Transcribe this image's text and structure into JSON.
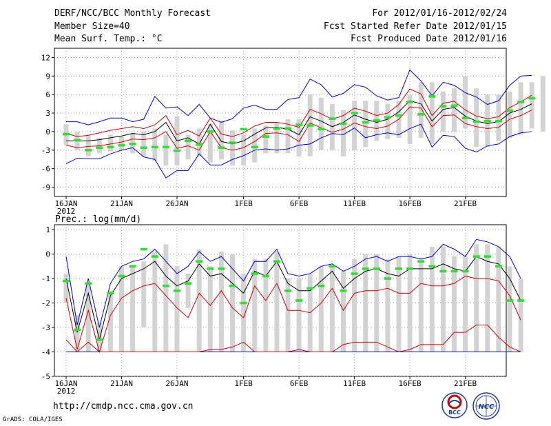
{
  "header": {
    "title": "DERF/NCC/BCC Monthly Forecast",
    "member_size": "Member Size=40",
    "variable": "Mean Surf. Temp.: °C",
    "period": "For 2012/01/16-2012/02/24",
    "start_date": "Fcst Started Refer Date 2012/01/15",
    "produced_date": "Fcst Produced Date 2012/01/16"
  },
  "footer": {
    "url": "http://cmdp.ncc.cma.gov.cn",
    "credit": "GrADS: COLA/IGES",
    "logo_bcc": "BCC",
    "logo_ncc": "NCC"
  },
  "colors": {
    "median": "#000000",
    "inner_band": "#d00000",
    "outer_band": "#0000d0",
    "box": "#d3d3d3",
    "marker": "#33dd33"
  },
  "chart_data": [
    {
      "type": "box-line",
      "name": "temperature",
      "ylabel": "Mean Surf. Temp.: °C",
      "ylim": [
        -10.5,
        13.5
      ],
      "yticks": [
        12,
        9,
        6,
        3,
        0,
        -3,
        -6,
        -9
      ],
      "x_tick_days": [
        0,
        5,
        10,
        16,
        21,
        26,
        31,
        36
      ],
      "x_tick_labels": [
        "16JAN",
        "21JAN",
        "26JAN",
        "1FEB",
        "6FEB",
        "11FEB",
        "16FEB",
        "21FEB"
      ],
      "x_year_label": "2012",
      "days": 40,
      "series": {
        "median": [
          -1.5,
          -1.5,
          -1.5,
          -1.3,
          -1,
          -0.7,
          -0.3,
          -0.5,
          0,
          1.5,
          -1.5,
          -1,
          -2,
          1.2,
          -1.6,
          -2,
          -1.5,
          -0.4,
          0.6,
          0.7,
          0.4,
          -0.5,
          2.4,
          1.7,
          0.8,
          1.5,
          2.7,
          2,
          1.5,
          2,
          3.2,
          5,
          4.5,
          1.7,
          3.6,
          3.9,
          2.5,
          1.7,
          1.3,
          1.6,
          3.0,
          3.6,
          4.5
        ],
        "p_upper": [
          -0.3,
          -0.8,
          -0.6,
          -0.2,
          0.2,
          0.5,
          0.8,
          0.5,
          1.1,
          2.6,
          -0.5,
          0.2,
          -0.7,
          2.2,
          -0.4,
          -0.8,
          -0.2,
          0.9,
          1.5,
          1.5,
          1.2,
          0.7,
          3.6,
          2.9,
          2.0,
          2.6,
          3.8,
          3.3,
          2.6,
          3.0,
          4.4,
          6.9,
          6.1,
          2.6,
          4.6,
          4.9,
          3.5,
          2.5,
          2.1,
          2.4,
          3.9,
          4.8,
          5.9
        ],
        "p_lower": [
          -2.2,
          -2.6,
          -2.4,
          -2.3,
          -2,
          -1.7,
          -1.2,
          -1.3,
          -1,
          0,
          -2.7,
          -2.3,
          -3,
          0,
          -2.6,
          -3,
          -2.6,
          -1.6,
          -0.3,
          -0.2,
          -0.5,
          -1.6,
          1.4,
          0.6,
          -0.1,
          0.4,
          1.4,
          0.8,
          0.5,
          0.9,
          2.0,
          4.0,
          3.8,
          0.8,
          2.6,
          2.7,
          1.3,
          0.8,
          0.5,
          0.7,
          2.0,
          2.6,
          3.5
        ],
        "max": [
          1.6,
          1.6,
          1.1,
          1.6,
          2.2,
          2.2,
          1.6,
          2.0,
          5.7,
          3.8,
          4.0,
          2.6,
          4.4,
          2.2,
          1.5,
          2.1,
          3.8,
          4.3,
          3.6,
          3.6,
          5.2,
          5.5,
          8.5,
          7.6,
          5.6,
          6.2,
          7.6,
          7.2,
          5.8,
          5.1,
          5.5,
          10,
          8.2,
          5.8,
          8.0,
          7.5,
          6.3,
          5.6,
          4.4,
          5.0,
          7.5,
          9.0,
          9.1
        ],
        "min": [
          -5.2,
          -4.3,
          -4.4,
          -4.4,
          -3.6,
          -3.0,
          -2.6,
          -4.1,
          -4.5,
          -7.5,
          -6.3,
          -6.3,
          -3.6,
          -5.4,
          -5.4,
          -4.5,
          -3.9,
          -3.0,
          -2.8,
          -3.0,
          -2.8,
          -2.2,
          -2.0,
          -1.0,
          -0.3,
          -0.5,
          0.6,
          -1.0,
          -0.5,
          -0.2,
          -0.5,
          0.5,
          1.2,
          -2.5,
          -0.6,
          -0.8,
          -2.7,
          -3.3,
          -2.3,
          -2.0,
          -0.8,
          -0.2,
          0.0
        ]
      },
      "boxes": [
        [
          -2.2,
          1.2
        ],
        [
          -3,
          0
        ],
        [
          -4,
          -0.5
        ],
        [
          -3.5,
          -1
        ],
        [
          -3.2,
          -0.5
        ],
        [
          -3,
          -0.8
        ],
        [
          -3.5,
          -0.2
        ],
        [
          -4,
          0
        ],
        [
          -4.8,
          0.5
        ],
        [
          -5.5,
          -0.5
        ],
        [
          -5.5,
          2.5
        ],
        [
          -4.5,
          -0.5
        ],
        [
          -4,
          0.5
        ],
        [
          -5,
          1.2
        ],
        [
          -4.5,
          1.8
        ],
        [
          -5.5,
          0.2
        ],
        [
          -5.5,
          -0.5
        ],
        [
          -5,
          0.5
        ],
        [
          -3.5,
          1
        ],
        [
          -3.5,
          1.5
        ],
        [
          -3.5,
          2
        ],
        [
          -4,
          2
        ],
        [
          -4,
          6
        ],
        [
          -3,
          5.5
        ],
        [
          -3,
          4.5
        ],
        [
          -4,
          3.5
        ],
        [
          -3,
          5
        ],
        [
          -2.5,
          5
        ],
        [
          -1.5,
          5
        ],
        [
          -1.2,
          4.5
        ],
        [
          -1,
          5
        ],
        [
          -2,
          6
        ],
        [
          -1,
          8
        ],
        [
          -2,
          8
        ],
        [
          0,
          6.5
        ],
        [
          0,
          7
        ],
        [
          0.5,
          9
        ],
        [
          -2.5,
          7
        ],
        [
          -2.5,
          6
        ],
        [
          -1.5,
          6
        ],
        [
          -1,
          6.5
        ],
        [
          -0.5,
          8
        ],
        [
          0.5,
          8
        ],
        [
          0,
          9
        ]
      ],
      "markers": [
        -0.4,
        -1.4,
        -3.0,
        -2.6,
        -2.5,
        -2.2,
        -2.0,
        -2.6,
        -2.5,
        -2.5,
        -3.1,
        -1.5,
        -2.1,
        0.0,
        -2.6,
        -1.8,
        0.4,
        -2.5,
        -0.8,
        0.5,
        0.5,
        1.1,
        1.0,
        0.4,
        2.1,
        1.3,
        3.0,
        1.5,
        1.8,
        2.3,
        2.6,
        4.8,
        2.8,
        5.7,
        4.1,
        4.2,
        2.2,
        1.6,
        1.7,
        1.7,
        3.4,
        4.8,
        5.4
      ]
    },
    {
      "type": "box-line",
      "name": "precipitation",
      "ylabel": "Prec.: log(mm/d)",
      "ylim": [
        -5,
        1.2
      ],
      "yticks": [
        1,
        0,
        -1,
        -2,
        -3,
        -4,
        -5
      ],
      "x_tick_days": [
        0,
        5,
        10,
        16,
        21,
        26,
        31,
        36
      ],
      "x_tick_labels": [
        "16JAN",
        "21JAN",
        "26JAN",
        "1FEB",
        "6FEB",
        "11FEB",
        "16FEB",
        "21FEB"
      ],
      "x_year_label": "2012",
      "days": 40,
      "series": {
        "median": [
          -1,
          -3.2,
          -1.6,
          -3.5,
          -1.7,
          -1,
          -0.8,
          -0.6,
          -0.3,
          -0.9,
          -1.3,
          -1.1,
          -0.4,
          -0.9,
          -0.8,
          -1.2,
          -1.6,
          -0.7,
          -0.9,
          -0.3,
          -1.2,
          -1.5,
          -1.5,
          -1.1,
          -0.7,
          -1.4,
          -1.0,
          -0.7,
          -0.6,
          -0.8,
          -0.9,
          -0.6,
          -0.6,
          -0.6,
          -0.4,
          -0.6,
          -0.7,
          -0.1,
          -0.3,
          -0.4,
          -1.0,
          -1.9
        ],
        "p_upper": [
          -1.8,
          -3.9,
          -2.3,
          -4.0,
          -2.5,
          -1.8,
          -1.5,
          -1.3,
          -1.2,
          -1.7,
          -2.2,
          -2.6,
          -1.6,
          -2.1,
          -1.5,
          -2.2,
          -2.6,
          -1.3,
          -1.9,
          -1.2,
          -2.3,
          -2.3,
          -2.4,
          -2.0,
          -1.4,
          -2.3,
          -1.6,
          -1.5,
          -1.5,
          -1.4,
          -1.6,
          -1.6,
          -1.2,
          -1.3,
          -1.3,
          -1.2,
          -0.9,
          -1.0,
          -1.0,
          -1.1,
          -1.7,
          -2.7
        ],
        "p_lower": [
          -3.5,
          -4.0,
          -3.6,
          -4.0,
          -4.0,
          -4.0,
          -4.0,
          -4.0,
          -4.0,
          -4.0,
          -4.0,
          -4.0,
          -4.0,
          -3.9,
          -3.9,
          -3.8,
          -3.6,
          -4.0,
          -4.0,
          -4.0,
          -4.0,
          -3.9,
          -4.0,
          -4.0,
          -4.0,
          -3.7,
          -3.6,
          -3.6,
          -3.6,
          -3.8,
          -4.0,
          -3.9,
          -3.7,
          -3.7,
          -3.7,
          -3.2,
          -3.2,
          -2.9,
          -2.9,
          -3.4,
          -3.8,
          -4.0
        ],
        "max": [
          -0.1,
          -2.9,
          -1.0,
          -3.0,
          -1.2,
          -0.5,
          -0.3,
          -0.2,
          0.2,
          -0.3,
          -0.8,
          -0.5,
          0.1,
          -0.3,
          -0.1,
          -0.6,
          -1.1,
          -0.3,
          -0.3,
          0.2,
          -0.8,
          -0.9,
          -0.8,
          -0.5,
          -0.4,
          -0.7,
          -0.5,
          -0.2,
          -0.1,
          -0.3,
          -0.1,
          -0.1,
          -0.2,
          -0.1,
          0.4,
          0.2,
          -0.1,
          0.6,
          0.5,
          0.3,
          -0.1,
          -1.0
        ],
        "min": [
          -4,
          -4,
          -4,
          -4,
          -4,
          -4,
          -4,
          -4,
          -4,
          -4,
          -4,
          -4,
          -4,
          -4,
          -4,
          -4,
          -4,
          -4,
          -4,
          -4,
          -4,
          -4,
          -4,
          -4,
          -4,
          -4,
          -4,
          -4,
          -4,
          -4,
          -4,
          -4,
          -4,
          -4,
          -4,
          -4,
          -4,
          -4,
          -4,
          -4,
          -4,
          -4
        ]
      },
      "boxes": [
        [
          -2,
          -0.8
        ],
        [
          -4,
          -2.5
        ],
        [
          -4,
          -1.2
        ],
        [
          -4,
          -2.8
        ],
        [
          -4,
          -1.5
        ],
        [
          -4,
          -0.5
        ],
        [
          -4,
          -0.5
        ],
        [
          -3,
          -0.3
        ],
        [
          -4,
          0.1
        ],
        [
          -4,
          0.4
        ],
        [
          -4,
          -0.5
        ],
        [
          -2.2,
          -0.8
        ],
        [
          -4,
          0.2
        ],
        [
          -4,
          -0.5
        ],
        [
          -4,
          0.1
        ],
        [
          -4,
          0
        ],
        [
          -4,
          -0.8
        ],
        [
          -4,
          -0.2
        ],
        [
          -4,
          -0.2
        ],
        [
          -4,
          0.1
        ],
        [
          -4,
          -1
        ],
        [
          -4,
          -1
        ],
        [
          -4,
          -0.8
        ],
        [
          -4,
          -0.5
        ],
        [
          -4,
          -0.5
        ],
        [
          -4,
          -0.7
        ],
        [
          -4,
          -0.2
        ],
        [
          -4,
          0
        ],
        [
          -4,
          0
        ],
        [
          -4,
          -0.2
        ],
        [
          -4,
          -0.1
        ],
        [
          -4,
          0
        ],
        [
          -4,
          -0.2
        ],
        [
          -4,
          0.3
        ],
        [
          -4,
          0.3
        ],
        [
          -4,
          -0.1
        ],
        [
          -4,
          -0.1
        ],
        [
          -4,
          0.4
        ],
        [
          -4,
          0.4
        ],
        [
          -4,
          0.3
        ],
        [
          -4,
          -0.5
        ],
        [
          -4,
          -1
        ]
      ],
      "markers": [
        -1.1,
        -3.1,
        -1.2,
        -3.5,
        -1.6,
        -0.9,
        -0.5,
        0.2,
        -0.1,
        -1.3,
        -1.5,
        -1.2,
        -0.3,
        -0.6,
        -0.6,
        -1.3,
        -2.0,
        -0.8,
        -0.9,
        -0.3,
        -1.5,
        -1.9,
        -1.4,
        -1.3,
        -0.5,
        -1.5,
        -0.8,
        -0.6,
        -0.6,
        -1.0,
        -0.6,
        -0.6,
        -0.3,
        -0.5,
        -0.7,
        -0.7,
        -0.7,
        -0.1,
        -0.1,
        -0.5,
        -1.9,
        -1.9
      ]
    }
  ]
}
